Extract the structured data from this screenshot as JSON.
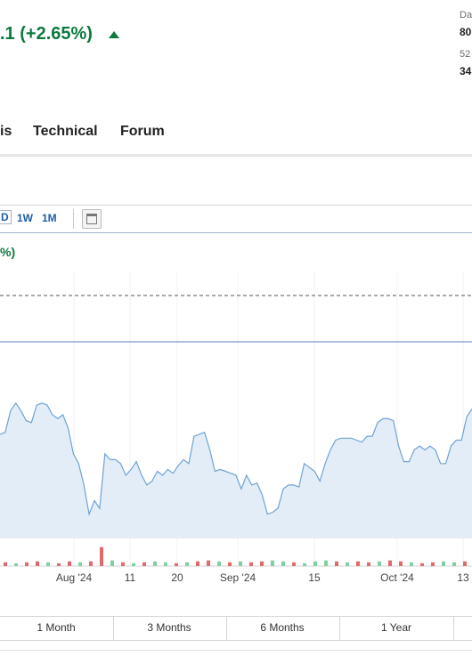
{
  "header": {
    "change": ".1 (+2.65%)",
    "stats": [
      {
        "label": "Da",
        "value": "80"
      },
      {
        "label": "52",
        "value": "34"
      }
    ]
  },
  "tabs": [
    "is",
    "Technical",
    "Forum"
  ],
  "toolbar": [
    "D",
    "1W",
    "1M"
  ],
  "periods": [
    "1 Month",
    "3 Months",
    "6 Months",
    "1 Year"
  ],
  "chart_data": {
    "type": "area",
    "subtitle": "%)",
    "x_labels": [
      "Aug '24",
      "11",
      "20",
      "Sep '24",
      "15",
      "Oct '24",
      "13"
    ],
    "ylim": [
      0,
      100
    ],
    "color": "#6fa3d4",
    "values": [
      53,
      54,
      65,
      69,
      65,
      60,
      59,
      68,
      69,
      68,
      63,
      61,
      63,
      56,
      43,
      38,
      27,
      12,
      19,
      15,
      43,
      40,
      40,
      38,
      32,
      35,
      39,
      32,
      27,
      29,
      34,
      32,
      35,
      33,
      37,
      40,
      38,
      52,
      53,
      54,
      45,
      34,
      35,
      34,
      33,
      32,
      25,
      32,
      27,
      28,
      22,
      12,
      13,
      15,
      25,
      27,
      27,
      26,
      38,
      36,
      34,
      29,
      38,
      45,
      50,
      51,
      51,
      51,
      50,
      49,
      52,
      52,
      59,
      61,
      61,
      60,
      47,
      39,
      39,
      45,
      47,
      45,
      47,
      45,
      38,
      38,
      47,
      50,
      50,
      62,
      66
    ],
    "volume": {
      "ylim": [
        0,
        30
      ],
      "values": [
        4,
        3,
        4,
        5,
        4,
        3,
        5,
        4,
        5,
        20,
        6,
        4,
        3,
        4,
        5,
        4,
        3,
        4,
        5,
        6,
        5,
        4,
        5,
        4,
        5,
        6,
        5,
        4,
        3,
        5,
        6,
        5,
        4,
        5,
        4,
        5,
        6,
        5,
        4,
        3,
        4,
        5,
        4,
        5
      ],
      "colors": [
        "#e06a6a",
        "#7fd1a4",
        "#e06a6a",
        "#e06a6a",
        "#7fd1a4",
        "#e06a6a",
        "#e06a6a",
        "#7fd1a4",
        "#e06a6a",
        "#e06a6a",
        "#7fd1a4",
        "#e06a6a",
        "#7fd1a4",
        "#e06a6a",
        "#7fd1a4",
        "#7fd1a4",
        "#e06a6a",
        "#7fd1a4",
        "#e06a6a",
        "#e06a6a",
        "#7fd1a4",
        "#e06a6a",
        "#7fd1a4",
        "#e06a6a",
        "#e06a6a",
        "#7fd1a4",
        "#7fd1a4",
        "#e06a6a",
        "#7fd1a4",
        "#7fd1a4",
        "#7fd1a4",
        "#e06a6a",
        "#7fd1a4",
        "#e06a6a",
        "#e06a6a",
        "#7fd1a4",
        "#e06a6a",
        "#e06a6a",
        "#7fd1a4",
        "#e06a6a",
        "#e06a6a",
        "#7fd1a4",
        "#7fd1a4",
        "#e06a6a"
      ]
    }
  }
}
